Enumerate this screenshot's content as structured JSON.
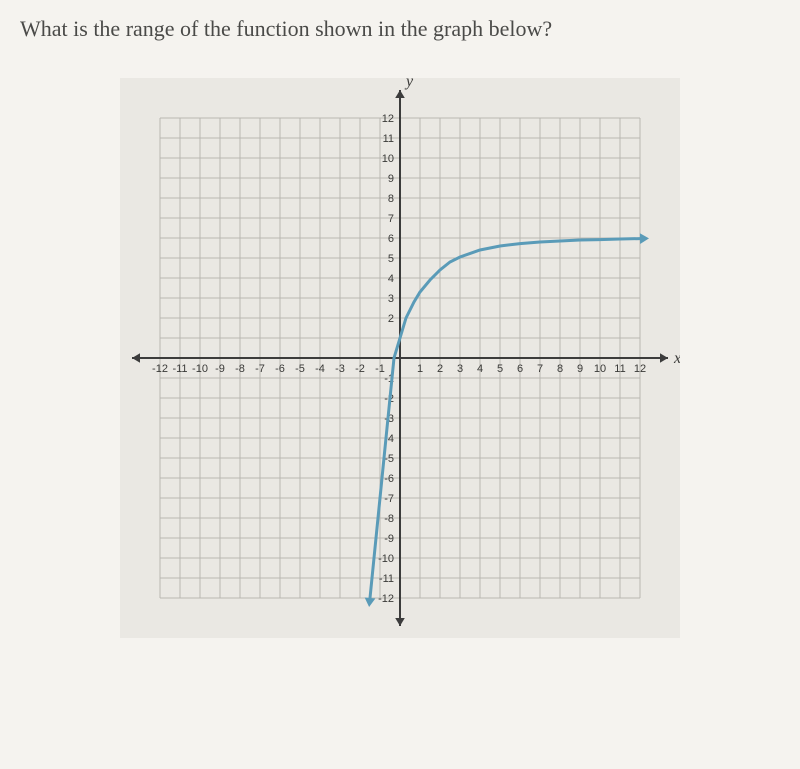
{
  "question_text": "What is the range of the function shown in the graph below?",
  "chart": {
    "type": "line",
    "background_color": "#eae8e3",
    "grid_color": "#b9b7b2",
    "axis_color": "#3c3c3c",
    "curve_color": "#5a9bb8",
    "xlim": [
      -12,
      12
    ],
    "ylim": [
      -12,
      12
    ],
    "xtick_step": 1,
    "ytick_step": 1,
    "x_ticks": [
      -12,
      -11,
      -10,
      -9,
      -8,
      -7,
      -6,
      -5,
      -4,
      -3,
      -2,
      -1,
      1,
      2,
      3,
      4,
      5,
      6,
      7,
      8,
      9,
      10,
      11,
      12
    ],
    "y_ticks_pos": [
      12,
      11,
      10,
      9,
      8,
      7,
      6,
      5,
      4,
      3,
      2
    ],
    "y_ticks_neg": [
      -1,
      -2,
      -3,
      -4,
      -5,
      -6,
      -7,
      -8,
      -9,
      -10,
      -11,
      -12
    ],
    "x_axis_label": "x",
    "y_axis_label": "y",
    "tick_fontsize_y": 11,
    "tick_fontsize_x": 11,
    "axislabel_fontsize": 16,
    "curve_points": [
      [
        -1.5,
        -12
      ],
      [
        -1.3,
        -10
      ],
      [
        -1.1,
        -8
      ],
      [
        -0.9,
        -6
      ],
      [
        -0.7,
        -4
      ],
      [
        -0.5,
        -2
      ],
      [
        -0.3,
        0
      ],
      [
        0,
        1
      ],
      [
        0.3,
        2
      ],
      [
        0.7,
        2.8
      ],
      [
        1,
        3.3
      ],
      [
        1.5,
        3.9
      ],
      [
        2,
        4.4
      ],
      [
        2.5,
        4.8
      ],
      [
        3,
        5.05
      ],
      [
        4,
        5.4
      ],
      [
        5,
        5.6
      ],
      [
        6,
        5.72
      ],
      [
        7,
        5.8
      ],
      [
        8,
        5.85
      ],
      [
        9,
        5.9
      ],
      [
        10,
        5.92
      ],
      [
        11,
        5.95
      ],
      [
        12,
        5.97
      ]
    ],
    "curve_width": 3,
    "has_right_arrow": true,
    "has_down_arrow": true,
    "asymptote_y": 6
  }
}
